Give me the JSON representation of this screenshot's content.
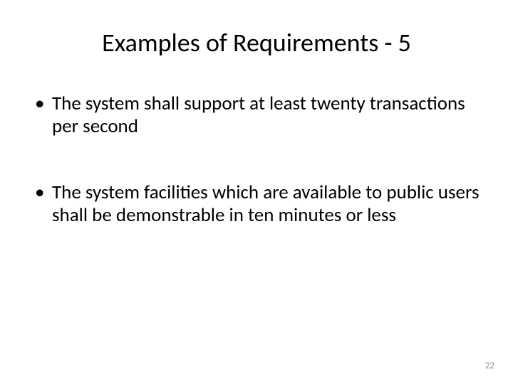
{
  "slide": {
    "title": "Examples of Requirements - 5",
    "bullets": [
      "The system shall support at least twenty transactions per second",
      "The system facilities which are available to public users shall be demonstrable in ten minutes or less"
    ],
    "pageNumber": "22"
  },
  "styling": {
    "background_color": "#ffffff",
    "text_color": "#000000",
    "page_number_color": "#8c8c8c",
    "title_fontsize": 36,
    "body_fontsize": 27,
    "page_number_fontsize": 13,
    "font_family": "Calibri"
  }
}
